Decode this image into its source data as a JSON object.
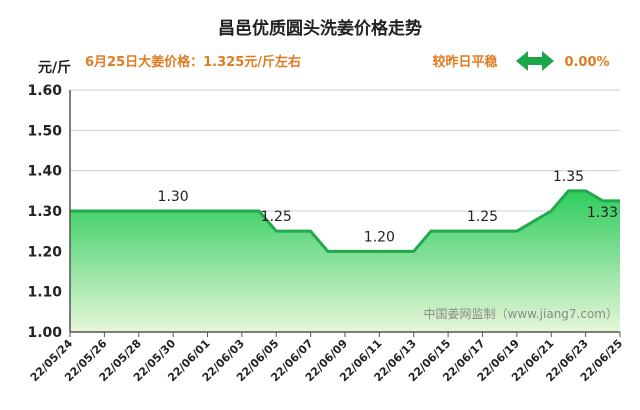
{
  "chart_data": {
    "type": "area",
    "title": "昌邑优质圆头洗姜价格走势",
    "unit_label": "元/斤",
    "info_price": "6月25日大姜价格：1.325元/斤左右",
    "info_change": "较昨日平稳",
    "info_percent": "0.00%",
    "watermark": "中国姜网监制（www.jiang7.com）",
    "ylim": [
      1.0,
      1.6
    ],
    "yticks": [
      "1.00",
      "1.10",
      "1.20",
      "1.30",
      "1.40",
      "1.50",
      "1.60"
    ],
    "x_tick_labels": [
      "22/05/24",
      "22/05/26",
      "22/05/28",
      "22/05/30",
      "22/06/01",
      "22/06/03",
      "22/06/05",
      "22/06/07",
      "22/06/09",
      "22/06/11",
      "22/06/13",
      "22/06/15",
      "22/06/17",
      "22/06/19",
      "22/06/21",
      "22/06/23",
      "22/06/25"
    ],
    "x": [
      "22/05/24",
      "22/05/25",
      "22/05/26",
      "22/05/27",
      "22/05/28",
      "22/05/29",
      "22/05/30",
      "22/05/31",
      "22/06/01",
      "22/06/02",
      "22/06/03",
      "22/06/04",
      "22/06/05",
      "22/06/06",
      "22/06/07",
      "22/06/08",
      "22/06/09",
      "22/06/10",
      "22/06/11",
      "22/06/12",
      "22/06/13",
      "22/06/14",
      "22/06/15",
      "22/06/16",
      "22/06/17",
      "22/06/18",
      "22/06/19",
      "22/06/20",
      "22/06/21",
      "22/06/22",
      "22/06/23",
      "22/06/24",
      "22/06/25"
    ],
    "values": [
      1.3,
      1.3,
      1.3,
      1.3,
      1.3,
      1.3,
      1.3,
      1.3,
      1.3,
      1.3,
      1.3,
      1.3,
      1.25,
      1.25,
      1.25,
      1.2,
      1.2,
      1.2,
      1.2,
      1.2,
      1.2,
      1.25,
      1.25,
      1.25,
      1.25,
      1.25,
      1.25,
      1.275,
      1.3,
      1.35,
      1.35,
      1.325,
      1.325
    ],
    "data_labels": [
      {
        "index": 6,
        "text": "1.30"
      },
      {
        "index": 12,
        "text": "1.25"
      },
      {
        "index": 18,
        "text": "1.20"
      },
      {
        "index": 24,
        "text": "1.25"
      },
      {
        "index": 29,
        "text": "1.35"
      },
      {
        "index": 32,
        "text": "1.33"
      }
    ],
    "grid": "horizontal",
    "colors": {
      "line": "#1faa4c",
      "fill_top": "#2ecc5e",
      "fill_bottom": "#e6f6d8",
      "info": "#e07b20",
      "arrow": "#1aa84a"
    }
  }
}
